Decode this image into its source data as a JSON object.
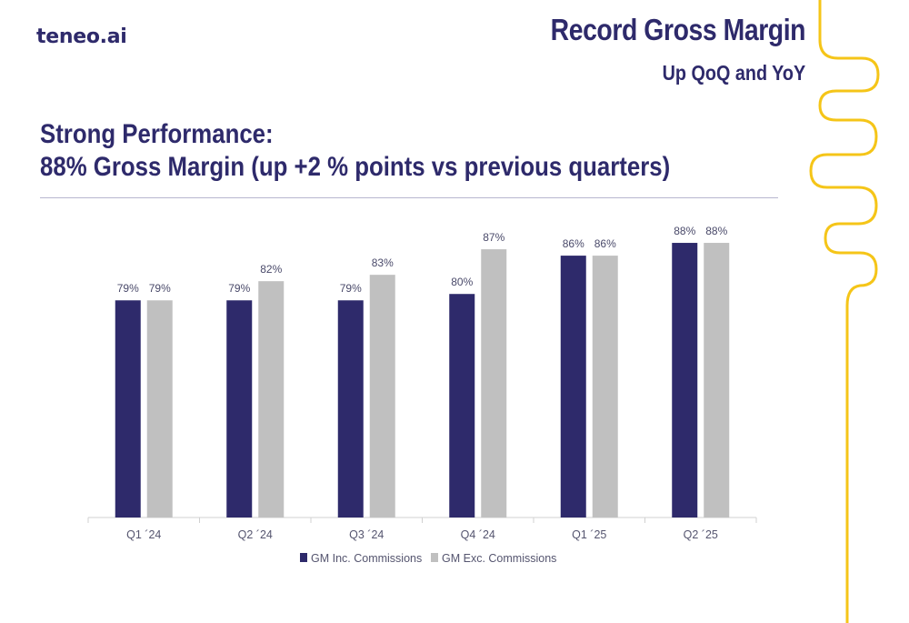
{
  "brand": {
    "logo_text": "teneo.ai"
  },
  "header": {
    "title": "Record Gross Margin",
    "subtitle": "Up QoQ and YoY"
  },
  "headline": {
    "line1": "Strong Performance:",
    "line2": "88% Gross Margin (up +2 % points vs previous quarters)"
  },
  "colors": {
    "primary": "#2e2a6b",
    "series_inc": "#2e2a6b",
    "series_exc": "#c0c0c0",
    "accent_line": "#f5c518"
  },
  "chart_data": {
    "type": "bar",
    "categories": [
      "Q1 ´24",
      "Q2 ´24",
      "Q3 ´24",
      "Q4 ´24",
      "Q1 ´25",
      "Q2 ´25"
    ],
    "series": [
      {
        "name": "GM Inc. Commissions",
        "values": [
          79,
          79,
          79,
          80,
          86,
          88
        ],
        "labels": [
          "79%",
          "79%",
          "79%",
          "80%",
          "86%",
          "88%"
        ]
      },
      {
        "name": "GM Exc. Commissions",
        "values": [
          79,
          82,
          83,
          87,
          86,
          88
        ],
        "labels": [
          "79%",
          "82%",
          "83%",
          "87%",
          "86%",
          "88%"
        ]
      }
    ],
    "ylim": [
      45,
      90
    ],
    "grid": false,
    "legend": "bottom-center",
    "xlabel": "",
    "ylabel": ""
  }
}
